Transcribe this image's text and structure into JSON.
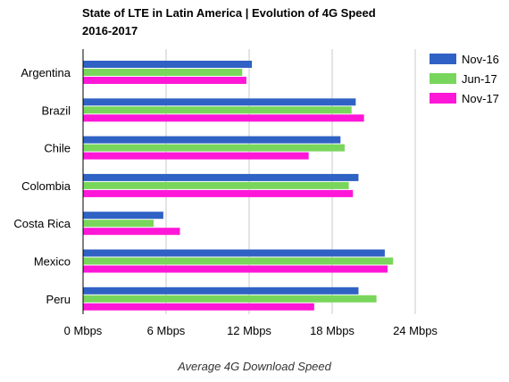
{
  "chart_data": {
    "type": "bar",
    "orientation": "horizontal",
    "title": "State of LTE in Latin America | Evolution of 4G Speed",
    "subtitle": "2016-2017",
    "xlabel": "Average 4G Download Speed",
    "ylabel": "",
    "xlim": [
      0,
      24
    ],
    "xticks": [
      "0 Mbps",
      "6 Mbps",
      "12 Mbps",
      "18 Mbps",
      "24 Mbps"
    ],
    "grid": true,
    "legend_position": "top-right",
    "categories": [
      "Argentina",
      "Brazil",
      "Chile",
      "Colombia",
      "Costa Rica",
      "Mexico",
      "Peru"
    ],
    "series": [
      {
        "name": "Nov-16",
        "color": "#2f62c4",
        "values": [
          12.2,
          19.7,
          18.6,
          19.9,
          5.8,
          21.8,
          19.9
        ]
      },
      {
        "name": "Jun-17",
        "color": "#79d65c",
        "values": [
          11.5,
          19.4,
          18.9,
          19.2,
          5.1,
          22.4,
          21.2
        ]
      },
      {
        "name": "Nov-17",
        "color": "#ff17d8",
        "values": [
          11.8,
          20.3,
          16.3,
          19.5,
          7.0,
          22.0,
          16.7
        ]
      }
    ]
  }
}
